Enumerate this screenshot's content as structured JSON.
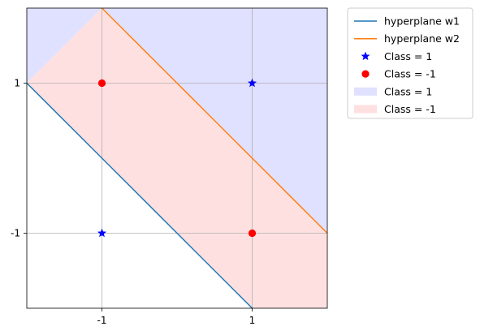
{
  "chart_data": {
    "type": "scatter",
    "title": "",
    "xlabel": "",
    "ylabel": "",
    "xlim": [
      -2,
      2
    ],
    "ylim": [
      -2,
      2
    ],
    "xticks": [
      -1,
      1
    ],
    "yticks": [
      -1,
      1
    ],
    "xtick_labels": [
      "-1",
      "1"
    ],
    "ytick_labels": [
      "-1",
      "1"
    ],
    "grid": true,
    "legend_position": "outside upper right",
    "lines": [
      {
        "name": "hyperplane w1",
        "color": "#1f77b4",
        "x": [
          -2,
          1
        ],
        "y": [
          1,
          -2
        ]
      },
      {
        "name": "hyperplane w2",
        "color": "#ff7f0e",
        "x": [
          -1,
          2
        ],
        "y": [
          2,
          -1
        ]
      }
    ],
    "points": [
      {
        "name": "Class = 1",
        "marker": "star",
        "color": "#0000ff",
        "x": [
          1,
          -1
        ],
        "y": [
          1,
          -1
        ]
      },
      {
        "name": "Class = -1",
        "marker": "circle",
        "color": "#ff0000",
        "x": [
          -1,
          1
        ],
        "y": [
          1,
          -1
        ]
      }
    ],
    "regions": [
      {
        "name": "Class = 1",
        "color": "#e0e0ff"
      },
      {
        "name": "Class = -1",
        "color": "#ffe0e0"
      }
    ],
    "region_polygons": [
      {
        "class": "Class = 1",
        "points": [
          [
            -2,
            1
          ],
          [
            -2,
            2
          ],
          [
            -1,
            2
          ],
          [
            2,
            -1
          ],
          [
            2,
            2
          ],
          [
            -1,
            2
          ]
        ]
      },
      {
        "class": "Class = -1",
        "points": [
          [
            -2,
            1
          ],
          [
            -1,
            2
          ],
          [
            2,
            -1
          ],
          [
            2,
            -2
          ],
          [
            1,
            -2
          ]
        ]
      }
    ]
  }
}
